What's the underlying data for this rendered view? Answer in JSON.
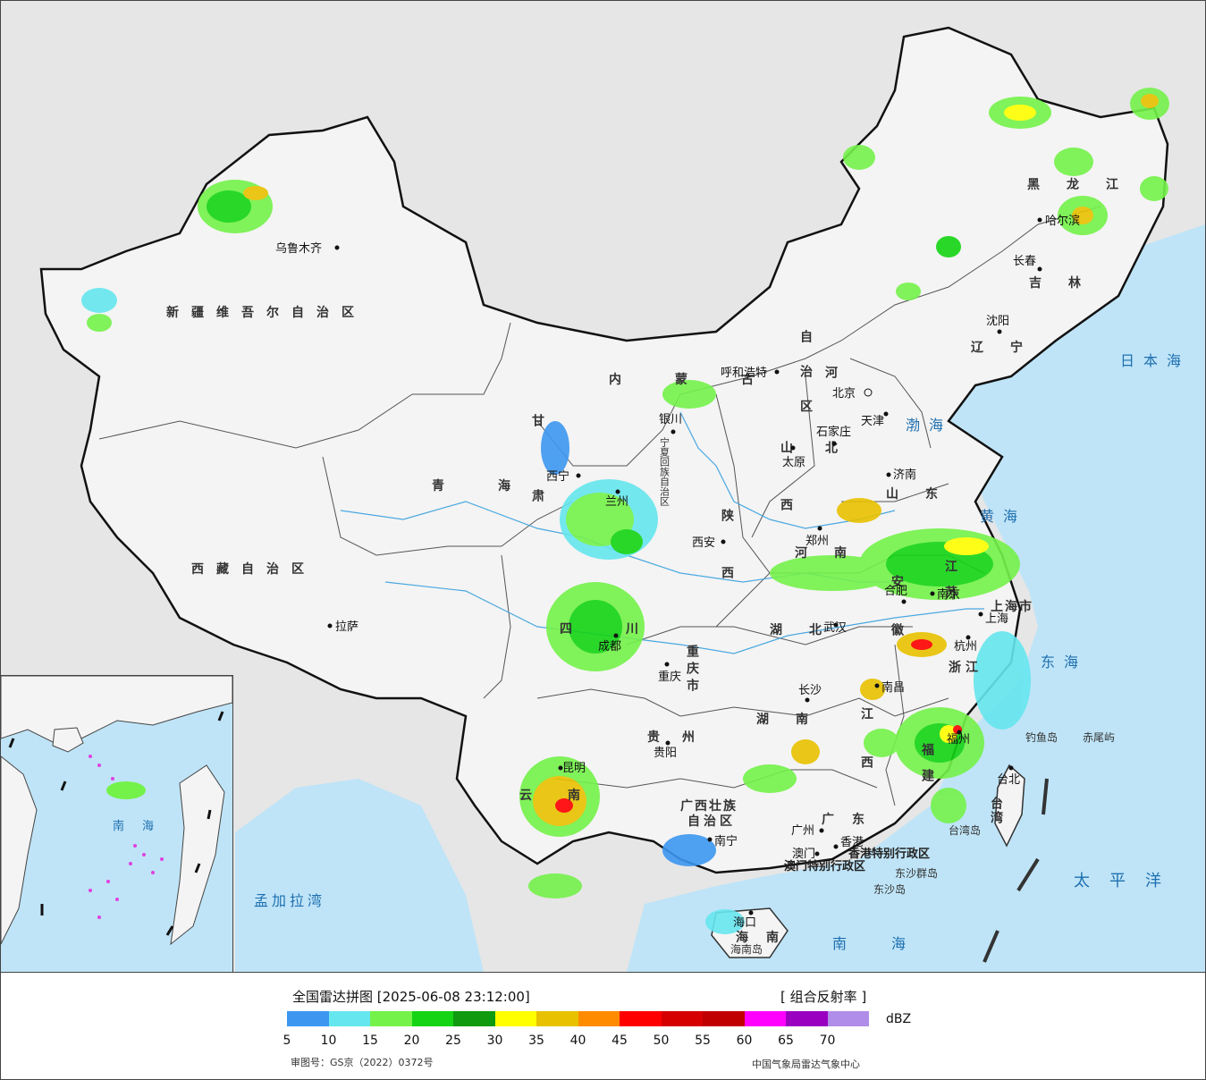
{
  "map": {
    "provinces": [
      {
        "id": "xinjiang",
        "label": "新疆维吾尔自治区"
      },
      {
        "id": "xizang",
        "label": "西藏自治区"
      },
      {
        "id": "qinghai",
        "label": "青海"
      },
      {
        "id": "gansu",
        "label": "甘肃"
      },
      {
        "id": "neimenggu_1",
        "label": "内蒙古"
      },
      {
        "id": "neimenggu_2",
        "label": "自治区"
      },
      {
        "id": "heilongjiang",
        "label": "黑龙江"
      },
      {
        "id": "jilin",
        "label": "吉林"
      },
      {
        "id": "liaoning",
        "label": "辽宁"
      },
      {
        "id": "hebei",
        "label": "河北"
      },
      {
        "id": "shanxi",
        "label": "山西"
      },
      {
        "id": "shaanxi",
        "label": "陕西"
      },
      {
        "id": "henan",
        "label": "河南"
      },
      {
        "id": "shandong",
        "label": "山东"
      },
      {
        "id": "jiangsu",
        "label": "江苏"
      },
      {
        "id": "anhui",
        "label": "安徽"
      },
      {
        "id": "hubei",
        "label": "湖北"
      },
      {
        "id": "sichuan",
        "label": "四川"
      },
      {
        "id": "chongqing",
        "label": "重庆市"
      },
      {
        "id": "guizhou",
        "label": "贵州"
      },
      {
        "id": "yunnan",
        "label": "云南"
      },
      {
        "id": "hunan",
        "label": "湖南"
      },
      {
        "id": "jiangxi",
        "label": "江西"
      },
      {
        "id": "zhejiang",
        "label": "浙江"
      },
      {
        "id": "fujian",
        "label": "福建"
      },
      {
        "id": "guangxi_1",
        "label": "广西壮族"
      },
      {
        "id": "guangxi_2",
        "label": "自治区"
      },
      {
        "id": "guangdong",
        "label": "广东"
      },
      {
        "id": "hainan",
        "label": "海南"
      },
      {
        "id": "taiwan",
        "label": "台湾"
      },
      {
        "id": "ningxia",
        "label": "宁夏回族自治区"
      },
      {
        "id": "shanghai",
        "label": "上海市"
      },
      {
        "id": "hk",
        "label": "香港特别行政区"
      },
      {
        "id": "macau",
        "label": "澳门特别行政区"
      }
    ],
    "cities": [
      {
        "id": "urumqi",
        "label": "乌鲁木齐"
      },
      {
        "id": "lhasa",
        "label": "拉萨"
      },
      {
        "id": "xining",
        "label": "西宁"
      },
      {
        "id": "lanzhou",
        "label": "兰州"
      },
      {
        "id": "yinchuan",
        "label": "银川"
      },
      {
        "id": "hohhot",
        "label": "呼和浩特"
      },
      {
        "id": "harbin",
        "label": "哈尔滨"
      },
      {
        "id": "changchun",
        "label": "长春"
      },
      {
        "id": "shenyang",
        "label": "沈阳"
      },
      {
        "id": "beijing",
        "label": "北京"
      },
      {
        "id": "tianjin",
        "label": "天津"
      },
      {
        "id": "shijiazhuang",
        "label": "石家庄"
      },
      {
        "id": "taiyuan",
        "label": "太原"
      },
      {
        "id": "jinan",
        "label": "济南"
      },
      {
        "id": "zhengzhou",
        "label": "郑州"
      },
      {
        "id": "xian",
        "label": "西安"
      },
      {
        "id": "hefei",
        "label": "合肥"
      },
      {
        "id": "nanjing",
        "label": "南京"
      },
      {
        "id": "shanghai_c",
        "label": "上海"
      },
      {
        "id": "hangzhou",
        "label": "杭州"
      },
      {
        "id": "wuhan",
        "label": "武汉"
      },
      {
        "id": "chengdu",
        "label": "成都"
      },
      {
        "id": "chongqing_c",
        "label": "重庆"
      },
      {
        "id": "guiyang",
        "label": "贵阳"
      },
      {
        "id": "kunming",
        "label": "昆明"
      },
      {
        "id": "changsha",
        "label": "长沙"
      },
      {
        "id": "nanchang",
        "label": "南昌"
      },
      {
        "id": "fuzhou",
        "label": "福州"
      },
      {
        "id": "nanning",
        "label": "南宁"
      },
      {
        "id": "guangzhou",
        "label": "广州"
      },
      {
        "id": "hongkong",
        "label": "香港"
      },
      {
        "id": "aomen",
        "label": "澳门"
      },
      {
        "id": "haikou",
        "label": "海口"
      },
      {
        "id": "taipei",
        "label": "台北"
      }
    ],
    "seas": [
      {
        "id": "sea_japan",
        "label": "日本海"
      },
      {
        "id": "sea_bohai",
        "label": "渤海"
      },
      {
        "id": "sea_yellow",
        "label": "黄海"
      },
      {
        "id": "sea_east",
        "label": "东海"
      },
      {
        "id": "sea_pacific",
        "label": "太平洋"
      },
      {
        "id": "sea_south",
        "label": "南海"
      },
      {
        "id": "sea_bengal",
        "label": "孟加拉湾"
      }
    ],
    "islands": [
      {
        "id": "diaoyu",
        "label": "钓鱼岛"
      },
      {
        "id": "chiwei",
        "label": "赤尾屿"
      },
      {
        "id": "taiwan_island",
        "label": "台湾岛"
      },
      {
        "id": "dongsha_qundao",
        "label": "东沙群岛"
      },
      {
        "id": "dongsha_dao",
        "label": "东沙岛"
      },
      {
        "id": "hainan_dao",
        "label": "海南岛"
      }
    ]
  },
  "legend": {
    "title": "全国雷达拼图 [2025-06-08 23:12:00]",
    "product": "[ 组合反射率 ]",
    "unit": "dBZ",
    "colors": [
      "#3d97f0",
      "#66e6ee",
      "#74f24a",
      "#14d414",
      "#0f9a0f",
      "#ffff00",
      "#e8c200",
      "#ff8c00",
      "#ff0000",
      "#d60000",
      "#c00000",
      "#ff00ff",
      "#9a00c0",
      "#b08de8"
    ],
    "ticks": [
      "5",
      "10",
      "15",
      "20",
      "25",
      "30",
      "35",
      "40",
      "45",
      "50",
      "55",
      "60",
      "65",
      "70"
    ],
    "approval": "审图号：GS京（2022）0372号",
    "agency": "中国气象局雷达气象中心"
  }
}
